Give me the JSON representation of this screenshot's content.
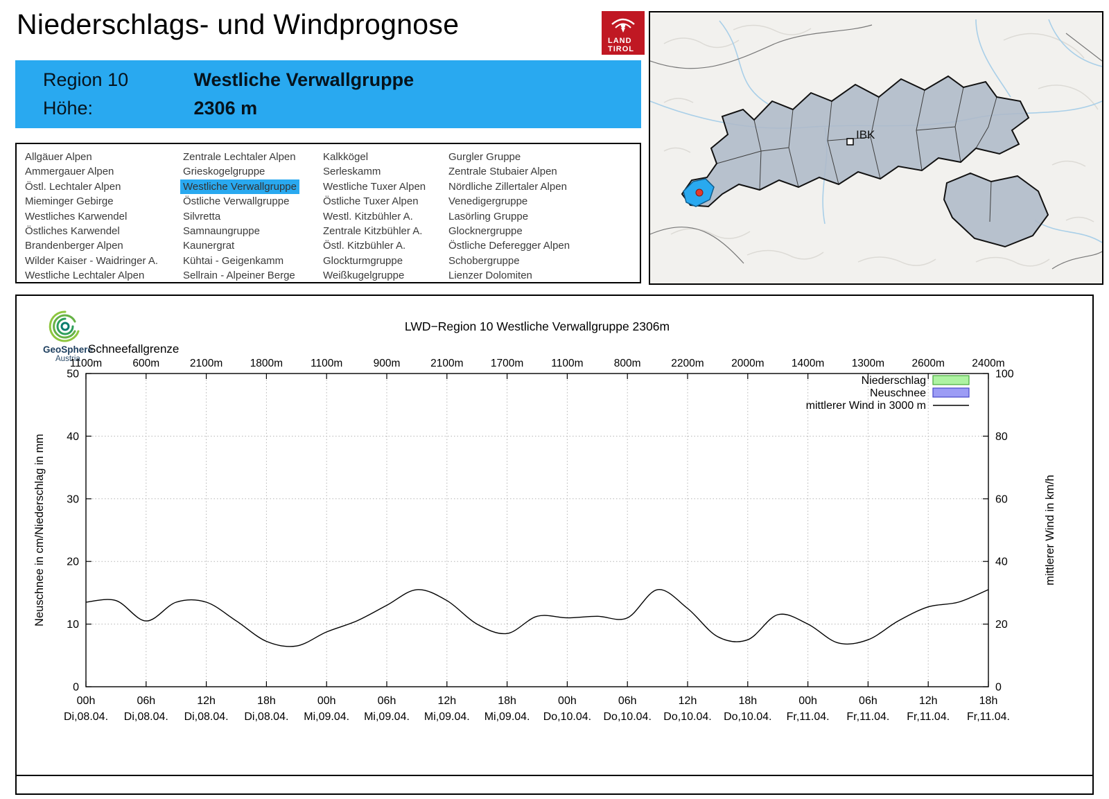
{
  "header": {
    "title": "Niederschlags- und Windprognose"
  },
  "logo": {
    "line1": "LAND",
    "line2": "TIROL"
  },
  "geosphere": {
    "name": "GeoSphere",
    "sub": "Austria"
  },
  "region_info": {
    "region_label": "Region 10",
    "region_name": "Westliche Verwallgruppe",
    "altitude_label": "Höhe:",
    "altitude_value": "2306 m",
    "accent_color": "#29a9f0"
  },
  "map": {
    "city_label": "IBK",
    "selected_color": "#29a9f0",
    "marker_color": "#e23b2e"
  },
  "region_list": {
    "selected": "Westliche Verwallgruppe",
    "columns": [
      [
        "Allgäuer Alpen",
        "Ammergauer Alpen",
        "Östl. Lechtaler Alpen",
        "Mieminger Gebirge",
        "Westliches Karwendel",
        "Östliches Karwendel",
        "Brandenberger Alpen",
        "Wilder Kaiser - Waidringer A.",
        "Westliche Lechtaler Alpen"
      ],
      [
        "Zentrale Lechtaler Alpen",
        "Grieskogelgruppe",
        "Westliche Verwallgruppe",
        "Östliche Verwallgruppe",
        "Silvretta",
        "Samnaungruppe",
        "Kaunergrat",
        "Kühtai - Geigenkamm",
        "Sellrain - Alpeiner Berge"
      ],
      [
        "Kalkkögel",
        "Serleskamm",
        "Westliche Tuxer Alpen",
        "Östliche Tuxer Alpen",
        "Westl. Kitzbühler A.",
        "Zentrale Kitzbühler A.",
        "Östl. Kitzbühler A.",
        "Glockturmgruppe",
        "Weißkugelgruppe"
      ],
      [
        "Gurgler Gruppe",
        "Zentrale Stubaier Alpen",
        "Nördliche Zillertaler Alpen",
        "Venedigergruppe",
        "Lasörling Gruppe",
        "Glocknergruppe",
        "Östliche Deferegger Alpen",
        "Schobergruppe",
        "Lienzer Dolomiten"
      ]
    ]
  },
  "chart_data": {
    "type": "line",
    "title": "LWD−Region 10 Westliche Verwallgruppe 2306m",
    "top_axis_label": "Schneefallgrenze",
    "top_axis_ticks": [
      "1100m",
      "600m",
      "2100m",
      "1800m",
      "1100m",
      "900m",
      "2100m",
      "1700m",
      "1100m",
      "800m",
      "2200m",
      "2000m",
      "1400m",
      "1300m",
      "2600m",
      "2400m"
    ],
    "x_tick_hours": [
      "00h",
      "06h",
      "12h",
      "18h",
      "00h",
      "06h",
      "12h",
      "18h",
      "00h",
      "06h",
      "12h",
      "18h",
      "00h",
      "06h",
      "12h",
      "18h"
    ],
    "x_tick_dates": [
      "Di,08.04.",
      "Di,08.04.",
      "Di,08.04.",
      "Di,08.04.",
      "Mi,09.04.",
      "Mi,09.04.",
      "Mi,09.04.",
      "Mi,09.04.",
      "Do,10.04.",
      "Do,10.04.",
      "Do,10.04.",
      "Do,10.04.",
      "Fr,11.04.",
      "Fr,11.04.",
      "Fr,11.04.",
      "Fr,11.04."
    ],
    "x_range_hours": [
      0,
      90
    ],
    "ylabel_left": "Neuschnee in cm/Niederschlag in mm",
    "ylabel_right": "mittlerer Wind in km/h",
    "ylim_left": [
      0,
      50
    ],
    "ylim_right": [
      0,
      100
    ],
    "yticks_left": [
      0,
      10,
      20,
      30,
      40,
      50
    ],
    "yticks_right": [
      0,
      20,
      40,
      60,
      80,
      100
    ],
    "grid": true,
    "legend_position": "top-right",
    "legend": [
      {
        "label": "Niederschlag",
        "type": "box",
        "fill": "#aef3a2",
        "border": "#46a83c"
      },
      {
        "label": "Neuschnee",
        "type": "box",
        "fill": "#9c9cf5",
        "border": "#4646c8"
      },
      {
        "label": "mittlerer Wind in 3000 m",
        "type": "line",
        "color": "#000000"
      }
    ],
    "series": [
      {
        "name": "Niederschlag",
        "unit": "mm",
        "axis": "left",
        "type": "bar",
        "values": []
      },
      {
        "name": "Neuschnee",
        "unit": "cm",
        "axis": "left",
        "type": "bar",
        "values": []
      },
      {
        "name": "mittlerer Wind in 3000 m",
        "unit": "km/h",
        "axis": "right",
        "type": "line",
        "x_hours": [
          0,
          3,
          6,
          9,
          12,
          15,
          18,
          21,
          24,
          27,
          30,
          33,
          36,
          39,
          42,
          45,
          48,
          51,
          54,
          57,
          60,
          63,
          66,
          69,
          72,
          75,
          78,
          81,
          84,
          87,
          90
        ],
        "values": [
          27,
          27.5,
          21,
          27,
          27,
          21,
          14.5,
          13,
          17.5,
          21,
          26,
          31,
          27.5,
          20,
          17,
          22.5,
          22,
          22.5,
          22,
          31,
          25,
          16,
          15,
          23,
          20,
          14,
          15,
          21,
          25.5,
          27,
          31
        ]
      }
    ]
  }
}
